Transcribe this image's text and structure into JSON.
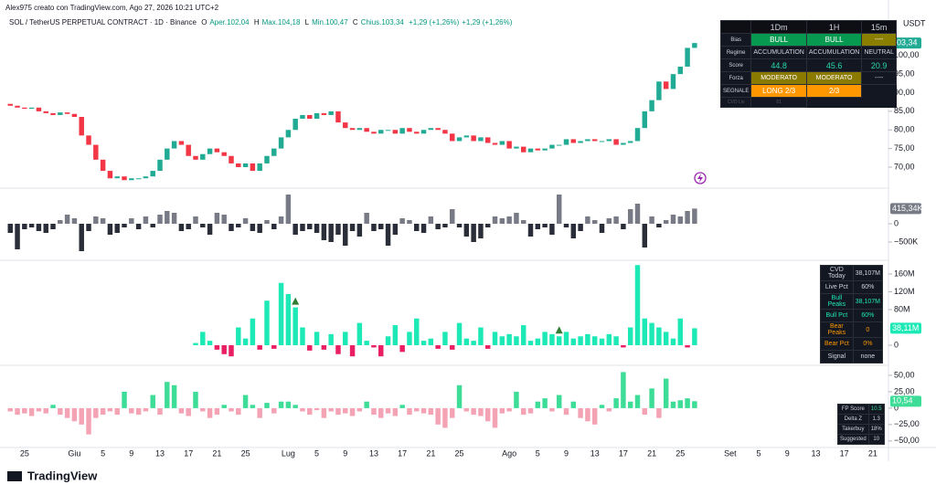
{
  "header": {
    "credit": "Alex975 creato con TradingView.com, Ago 27, 2026 10:21 UTC+2",
    "symbol": "SOL / TetherUS PERPETUAL CONTRACT · 1D · Binance",
    "o": "O",
    "open": "Aper.102,04",
    "h": "H",
    "high": "Max.104,18",
    "l": "L",
    "low": "Min.100,47",
    "c": "C",
    "close": "Chius.103,34",
    "change": "+1,29 (+1,26%)",
    "change2": "+1,29 (+1,26%)",
    "currency": "USDT",
    "logo": "TradingView"
  },
  "signal_table": {
    "header": [
      "1Dm",
      "1H",
      "15m"
    ],
    "rows": [
      [
        "Bias",
        "BULL",
        "BULL",
        "----"
      ],
      [
        "Regime",
        "ACCUMULATION",
        "ACCUMULATION",
        "NEUTRAL"
      ],
      [
        "Score",
        "44.8",
        "45.6",
        "20.9"
      ],
      [
        "Forza",
        "MODERATO",
        "MODERATO",
        "----"
      ],
      [
        "SEGNALE",
        "LONG 2/3",
        "2/3"
      ],
      [
        "CVD Liv",
        "61"
      ]
    ]
  },
  "cvd_table": {
    "rows": [
      [
        "CVD Today",
        "38,107M"
      ],
      [
        "Live Pct",
        "60%"
      ],
      [
        "Bull Peaks",
        "38,107M"
      ],
      [
        "Bull Pct",
        "60%"
      ],
      [
        "Bear Peaks",
        "0"
      ],
      [
        "Bear Pct",
        "0%"
      ],
      [
        "Signal",
        "none"
      ]
    ]
  },
  "fp_table": {
    "rows": [
      [
        "FP Score",
        "10.5"
      ],
      [
        "Delta Z",
        "1.3"
      ],
      [
        "Takerbuy",
        "18%"
      ],
      [
        "Suggested",
        "10"
      ]
    ]
  },
  "chart_data": [
    {
      "type": "candlestick",
      "up_color": "#22ab94",
      "down_color": "#f23645",
      "last_label": "103,34",
      "ylim": [
        64.6,
        110
      ],
      "yticks": [
        {
          "value": 70,
          "label": "70,00"
        },
        {
          "value": 75,
          "label": "75,00"
        },
        {
          "value": 80,
          "label": "80,00"
        },
        {
          "value": 85,
          "label": "85,00"
        },
        {
          "value": 90,
          "label": "90,00"
        },
        {
          "value": 95,
          "label": "95,00"
        },
        {
          "value": 100,
          "label": "100,00"
        }
      ],
      "open": [
        87,
        86.5,
        86,
        85.7,
        86,
        85,
        84.5,
        84,
        84.7,
        84.3,
        83.5,
        78.5,
        76,
        72,
        69,
        67,
        67.5,
        66.5,
        67,
        67,
        67.5,
        69,
        72,
        75,
        77,
        76,
        73,
        72,
        73.5,
        75,
        74,
        73,
        71,
        70,
        71,
        69,
        71,
        73,
        75,
        78,
        80,
        83,
        84,
        83,
        84.5,
        84,
        85,
        82,
        80.5,
        80,
        80.5,
        79.5,
        79,
        80,
        80,
        79,
        80.5,
        79.5,
        79,
        80,
        80.5,
        80,
        79,
        77,
        78,
        78.5,
        77,
        78,
        76.5,
        76,
        77,
        75,
        75.5,
        74,
        75,
        74.5,
        75,
        76,
        76,
        77.5,
        76.5,
        77,
        77.5,
        77,
        77,
        77.5,
        76,
        76.5,
        77,
        80.5,
        85,
        88,
        93,
        91,
        95,
        97,
        102.04
      ],
      "close": [
        86.5,
        86,
        85.7,
        86,
        85,
        84.5,
        84,
        84.7,
        84.3,
        83.5,
        78.5,
        76,
        72,
        69,
        67,
        67.5,
        66.5,
        67,
        67,
        67.5,
        69,
        72,
        75,
        77,
        76,
        73,
        72,
        73.5,
        75,
        74,
        73,
        71,
        70,
        71,
        69,
        71,
        73,
        75,
        78,
        80,
        83,
        84,
        83,
        84.5,
        84,
        85,
        82,
        80.5,
        80,
        80.5,
        79.5,
        79,
        80,
        80,
        79,
        80.5,
        79.5,
        79,
        80,
        80.5,
        80,
        79,
        77,
        78,
        78.5,
        77,
        78,
        76.5,
        76,
        77,
        75,
        75.5,
        74,
        75,
        74.5,
        75,
        76,
        76,
        77.5,
        76.5,
        77,
        77.5,
        77,
        77,
        77.5,
        76,
        76.5,
        77,
        80.5,
        85,
        88,
        93,
        91,
        95,
        97,
        102.05,
        103.34
      ]
    },
    {
      "type": "bar",
      "pos_color": "#787b86",
      "neg_color": "#2a2e39",
      "last_label": "415,34K",
      "ylim": [
        -950,
        925
      ],
      "yticks": [
        {
          "value": -500,
          "label": "−500K"
        },
        0
      ],
      "values": [
        -250,
        -700,
        -150,
        -100,
        -200,
        -250,
        -150,
        100,
        250,
        150,
        -750,
        -200,
        200,
        150,
        -300,
        -250,
        -100,
        150,
        -150,
        200,
        -100,
        250,
        350,
        300,
        -200,
        -150,
        200,
        -100,
        -300,
        300,
        250,
        -200,
        -100,
        150,
        -200,
        -250,
        100,
        -150,
        200,
        800,
        -300,
        -200,
        -150,
        -250,
        -450,
        -500,
        -300,
        -600,
        -200,
        -350,
        300,
        -200,
        -150,
        -600,
        -300,
        150,
        100,
        -200,
        -250,
        200,
        -150,
        -100,
        400,
        -100,
        -350,
        -500,
        -400,
        -100,
        200,
        150,
        200,
        300,
        100,
        -350,
        -150,
        -100,
        -300,
        800,
        -100,
        -400,
        -200,
        200,
        100,
        -250,
        150,
        200,
        -150,
        400,
        550,
        -650,
        200,
        -100,
        100,
        250,
        200,
        350,
        415.34
      ]
    },
    {
      "type": "bar",
      "pos_color": "#1de9b6",
      "neg_color": "#e91e63",
      "marker_color": "#2e7d32",
      "last_label": "38,11M",
      "ylim": [
        -41,
        184.6
      ],
      "yticks": [
        0,
        {
          "value": 80,
          "label": "80M"
        },
        {
          "value": 120,
          "label": "120M"
        },
        {
          "value": 160,
          "label": "160M"
        }
      ],
      "markers": [
        40,
        77
      ],
      "values": [
        null,
        null,
        null,
        null,
        null,
        null,
        null,
        null,
        null,
        null,
        null,
        null,
        null,
        null,
        null,
        null,
        null,
        null,
        null,
        null,
        null,
        null,
        null,
        null,
        null,
        null,
        5,
        30,
        10,
        -10,
        -20,
        -25,
        40,
        15,
        60,
        -10,
        100,
        -8,
        140,
        115,
        85,
        40,
        -12,
        30,
        -10,
        25,
        -20,
        30,
        -25,
        50,
        10,
        -5,
        -25,
        20,
        45,
        -15,
        30,
        60,
        10,
        15,
        -8,
        30,
        -10,
        50,
        15,
        10,
        40,
        -8,
        30,
        20,
        25,
        20,
        45,
        10,
        15,
        30,
        25,
        20,
        30,
        15,
        20,
        25,
        20,
        15,
        25,
        20,
        -5,
        40,
        180,
        60,
        50,
        40,
        30,
        15,
        60,
        -5,
        38.11
      ]
    },
    {
      "type": "bar",
      "pos_color": "#3ddc97",
      "neg_color": "#f4a3b5",
      "last_label": "10,54",
      "ylim": [
        -60,
        62.5
      ],
      "yticks": [
        {
          "value": -50,
          "label": "−50,00"
        },
        {
          "value": -25,
          "label": "−25,00"
        },
        0,
        {
          "value": 25,
          "label": "25,00"
        },
        {
          "value": 50,
          "label": "50,00"
        }
      ],
      "values": [
        -5,
        -10,
        -8,
        -12,
        -5,
        -8,
        5,
        -10,
        -15,
        -20,
        -25,
        -40,
        -15,
        -10,
        -5,
        -10,
        25,
        -8,
        -10,
        -5,
        20,
        -10,
        40,
        35,
        -8,
        -12,
        25,
        -5,
        -15,
        -10,
        5,
        -5,
        -10,
        20,
        5,
        -15,
        8,
        -8,
        10,
        10,
        5,
        -5,
        -10,
        -3,
        -15,
        -5,
        -10,
        -8,
        -12,
        -5,
        10,
        -10,
        -15,
        -8,
        -12,
        5,
        -10,
        -5,
        -8,
        -10,
        -25,
        -30,
        -15,
        35,
        -5,
        -10,
        -12,
        -20,
        -30,
        -8,
        -5,
        25,
        -10,
        -8,
        10,
        15,
        -5,
        20,
        -10,
        10,
        -15,
        -20,
        -25,
        5,
        -5,
        15,
        55,
        10,
        20,
        -10,
        30,
        -15,
        45,
        10,
        12,
        15,
        10.54
      ],
      "xlim": [
        -0.8,
        123.2
      ],
      "xticks": [
        {
          "value": 2,
          "label": "25"
        },
        {
          "value": 9,
          "label": "Giu"
        },
        {
          "value": 13,
          "label": "5"
        },
        {
          "value": 17,
          "label": "9"
        },
        {
          "value": 21,
          "label": "13"
        },
        {
          "value": 25,
          "label": "17"
        },
        {
          "value": 29,
          "label": "21"
        },
        {
          "value": 33,
          "label": "25"
        },
        {
          "value": 39,
          "label": "Lug"
        },
        {
          "value": 43,
          "label": "5"
        },
        {
          "value": 47,
          "label": "9"
        },
        {
          "value": 51,
          "label": "13"
        },
        {
          "value": 55,
          "label": "17"
        },
        {
          "value": 59,
          "label": "21"
        },
        {
          "value": 63,
          "label": "25"
        },
        {
          "value": 70,
          "label": "Ago"
        },
        {
          "value": 74,
          "label": "5"
        },
        {
          "value": 78,
          "label": "9"
        },
        {
          "value": 82,
          "label": "13"
        },
        {
          "value": 86,
          "label": "17"
        },
        {
          "value": 90,
          "label": "21"
        },
        {
          "value": 94,
          "label": "25"
        },
        {
          "value": 101,
          "label": "Set"
        },
        {
          "value": 105,
          "label": "5"
        },
        {
          "value": 109,
          "label": "9"
        },
        {
          "value": 113,
          "label": "13"
        },
        {
          "value": 117,
          "label": "17"
        },
        {
          "value": 121,
          "label": "21"
        }
      ]
    }
  ]
}
